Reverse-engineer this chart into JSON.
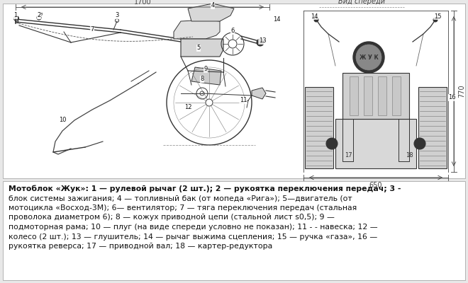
{
  "bg_color": "#e8e8e8",
  "diagram_bg": "#ffffff",
  "text_bg": "#ffffff",
  "text_color": "#111111",
  "line_color": "#333333",
  "dim_color": "#444444",
  "caption_line1": "Мотоблок «Жук»: 1 — рулевой рычаг (2 шт.); 2 — рукоятка переключения передач; 3 -",
  "caption_lines": [
    "блок системы зажигания; 4 — топливный бак (от мопеда «Рига»); 5—двигатель (от",
    "мотоцикла «Восход-3М); 6— вентилятор; 7 — тяга переключения передач (стальная",
    "проволока диаметром 6); 8 — кожух приводной цепи (стальной лист s0,5); 9 —",
    "подмоторная рама; 10 — плуг (на виде спереди условно не показан); 11 - - навеска; 12 —",
    "колесо (2 шт.); 13 — глушитель; 14 — рычаг выжима сцепления; 15 — ручка «газа», 16 —",
    "рукоятка реверса; 17 — приводной вал; 18 — картер-редуктора"
  ],
  "caption_fontsize": 7.8,
  "label_fontsize": 6.0,
  "dim_fontsize": 7.0
}
